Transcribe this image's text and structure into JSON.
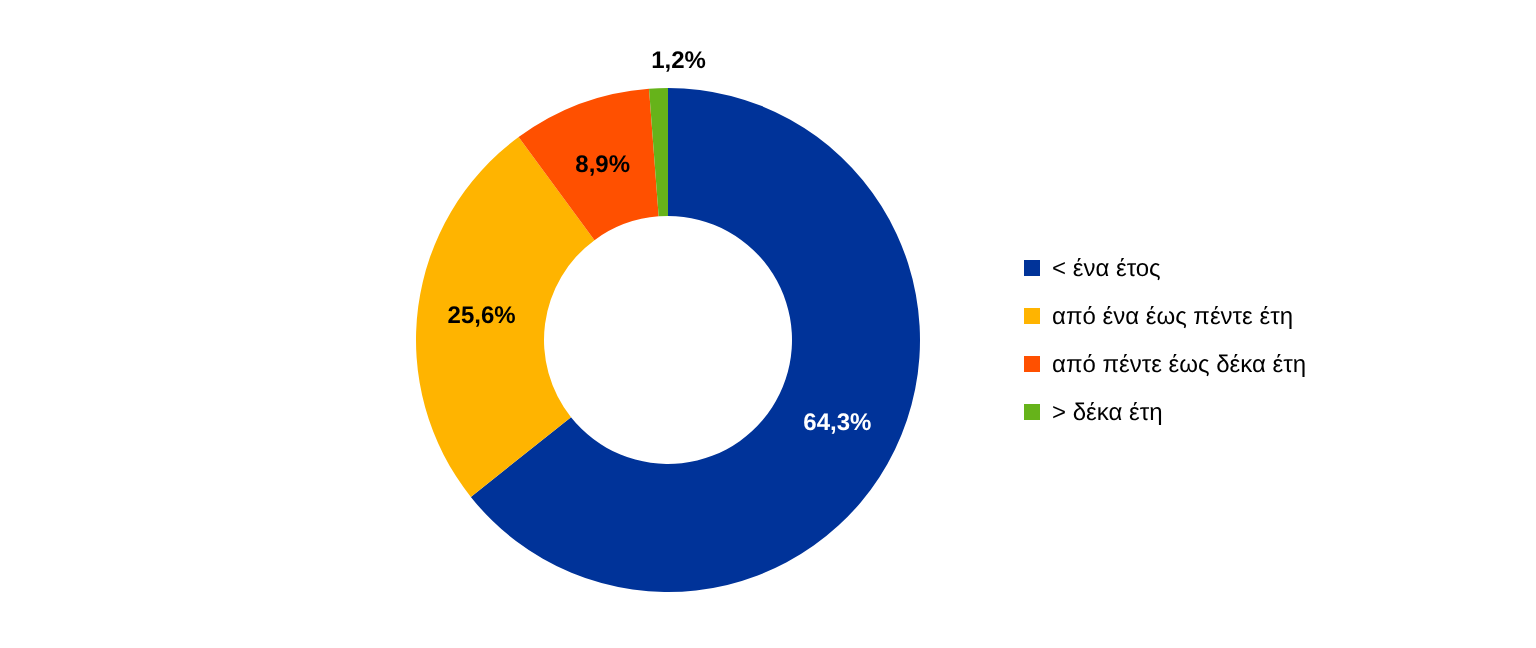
{
  "chart_data": {
    "type": "donut",
    "categories": [
      "< ένα έτος",
      "από ένα έως πέντε έτη",
      "από πέντε έως δέκα έτη",
      "> δέκα έτη"
    ],
    "values": [
      64.3,
      25.6,
      8.9,
      1.2
    ],
    "colors": [
      "#003399",
      "#ffb400",
      "#ff5000",
      "#66b31a"
    ],
    "value_labels": [
      "64,3%",
      "25,6%",
      "8,9%",
      "1,2%"
    ],
    "legend": "right"
  }
}
